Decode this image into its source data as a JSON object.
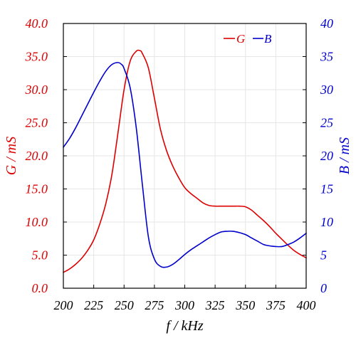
{
  "chart_data": {
    "type": "line",
    "title": "",
    "xlabel": "f / kHz",
    "ylabel_left": "G / mS",
    "ylabel_right": "B / mS",
    "xlim": [
      200,
      400
    ],
    "ylim_left": [
      0,
      40
    ],
    "ylim_right": [
      0,
      40
    ],
    "x_ticks": [
      "200",
      "225",
      "250",
      "275",
      "300",
      "325",
      "350",
      "375",
      "400"
    ],
    "y_left_ticks": [
      "0.0",
      "5.0",
      "10.0",
      "15.0",
      "20.0",
      "25.0",
      "30.0",
      "35.0",
      "40.0"
    ],
    "y_right_ticks": [
      "0",
      "5",
      "10",
      "15",
      "20",
      "25",
      "30",
      "35",
      "40"
    ],
    "grid": true,
    "legend_position": "top-right",
    "colors": {
      "G": "#dd0000",
      "B": "#0000cc",
      "grid": "#e6e6e6",
      "frame": "#000000"
    },
    "series": [
      {
        "name": "G",
        "axis": "left",
        "color": "#dd0000",
        "x": [
          200,
          205,
          210,
          215,
          220,
          225,
          230,
          235,
          240,
          245,
          250,
          255,
          260,
          263,
          265,
          270,
          275,
          280,
          285,
          290,
          295,
          300,
          305,
          310,
          315,
          320,
          325,
          330,
          335,
          340,
          345,
          350,
          355,
          360,
          365,
          370,
          375,
          380,
          385,
          390,
          395,
          400
        ],
        "y": [
          2.4,
          2.9,
          3.6,
          4.5,
          5.7,
          7.3,
          9.7,
          12.8,
          17.2,
          23.5,
          30.0,
          34.3,
          35.8,
          35.9,
          35.5,
          33.3,
          28.7,
          24.0,
          20.8,
          18.5,
          16.7,
          15.2,
          14.3,
          13.6,
          12.9,
          12.5,
          12.4,
          12.4,
          12.4,
          12.4,
          12.4,
          12.3,
          11.8,
          11.0,
          10.2,
          9.3,
          8.3,
          7.4,
          6.5,
          5.7,
          5.1,
          4.6
        ]
      },
      {
        "name": "B",
        "axis": "right",
        "color": "#0000cc",
        "x": [
          200,
          205,
          210,
          215,
          220,
          225,
          230,
          235,
          240,
          245,
          248,
          250,
          255,
          260,
          265,
          270,
          275,
          280,
          285,
          290,
          295,
          300,
          305,
          310,
          315,
          320,
          325,
          330,
          335,
          340,
          345,
          350,
          355,
          360,
          365,
          370,
          375,
          380,
          385,
          390,
          395,
          400
        ],
        "y": [
          21.3,
          22.6,
          24.2,
          26.0,
          27.8,
          29.6,
          31.3,
          32.8,
          33.8,
          34.1,
          33.8,
          33.2,
          30.3,
          24.3,
          15.8,
          7.8,
          4.4,
          3.3,
          3.2,
          3.6,
          4.3,
          5.1,
          5.8,
          6.4,
          7.0,
          7.6,
          8.1,
          8.5,
          8.6,
          8.6,
          8.4,
          8.1,
          7.6,
          7.1,
          6.6,
          6.4,
          6.3,
          6.3,
          6.6,
          7.0,
          7.6,
          8.3
        ]
      }
    ]
  }
}
